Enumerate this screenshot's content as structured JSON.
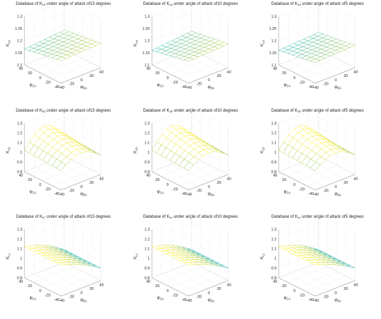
{
  "chart_data": [
    {
      "type": "surface",
      "title_prefix": "Database of K",
      "title_sub": "La",
      "title_suffix": " under angle of attack of15 degrees",
      "zlabel": "K",
      "zlabel_sub": "La",
      "xlabel": "φ",
      "xlabel_sub": "BA",
      "ylabel": "φ",
      "ylabel_sub": "CA",
      "zlim": [
        1.1,
        1.3
      ],
      "zticks": [
        "1.1",
        "1.15",
        "1.2",
        "1.25",
        "1.3"
      ],
      "xticks": [
        "-40",
        "-20",
        "0",
        "20",
        "40"
      ],
      "yticks": [
        "-40",
        "-20",
        "0",
        "20",
        "40"
      ],
      "surface": {
        "corner_values": [
          1.193,
          1.2,
          1.165,
          1.18
        ],
        "ridge": 0
      }
    },
    {
      "type": "surface",
      "title_prefix": "Database of K",
      "title_sub": "La",
      "title_suffix": " under angle of attack of10 degrees",
      "zlabel": "K",
      "zlabel_sub": "La",
      "xlabel": "φ",
      "xlabel_sub": "BA",
      "ylabel": "φ",
      "ylabel_sub": "CA",
      "zlim": [
        1.1,
        1.3
      ],
      "zticks": [
        "1.1",
        "1.15",
        "1.2",
        "1.25",
        "1.3"
      ],
      "xticks": [
        "-40",
        "-20",
        "0",
        "20",
        "40"
      ],
      "yticks": [
        "-40",
        "-20",
        "0",
        "20",
        "40"
      ],
      "surface": {
        "corner_values": [
          1.19,
          1.198,
          1.16,
          1.175
        ],
        "ridge": 0
      }
    },
    {
      "type": "surface",
      "title_prefix": "Database of K",
      "title_sub": "La",
      "title_suffix": " under angle of attack of5 degrees",
      "zlabel": "K",
      "zlabel_sub": "La",
      "xlabel": "φ",
      "xlabel_sub": "BA",
      "ylabel": "φ",
      "ylabel_sub": "CA",
      "zlim": [
        1.1,
        1.3
      ],
      "zticks": [
        "1.1",
        "1.15",
        "1.2",
        "1.25",
        "1.3"
      ],
      "xticks": [
        "-40",
        "-20",
        "0",
        "20",
        "40"
      ],
      "yticks": [
        "-40",
        "-20",
        "0",
        "20",
        "40"
      ],
      "surface": {
        "corner_values": [
          1.185,
          1.192,
          1.16,
          1.17
        ],
        "ridge": 0
      }
    },
    {
      "type": "surface",
      "title_prefix": "Database of K",
      "title_sub": "Lb",
      "title_suffix": " under angle of attack of15 degrees",
      "zlabel": "K",
      "zlabel_sub": "Lb",
      "xlabel": "φ",
      "xlabel_sub": "BA",
      "ylabel": "φ",
      "ylabel_sub": "CA",
      "zlim": [
        0.8,
        1.3
      ],
      "zticks": [
        "0.8",
        "0.9",
        "1",
        "1.1",
        "1.2",
        "1.3"
      ],
      "xticks": [
        "-40",
        "-20",
        "0",
        "20",
        "40"
      ],
      "yticks": [
        "-40",
        "-20",
        "0",
        "20",
        "40"
      ],
      "surface": {
        "corner_values": [
          1.0,
          1.0,
          1.02,
          1.02
        ],
        "ridge": 0.17
      }
    },
    {
      "type": "surface",
      "title_prefix": "Database of K",
      "title_sub": "Lb",
      "title_suffix": " under angle of attack of10 degrees",
      "zlabel": "K",
      "zlabel_sub": "Lb",
      "xlabel": "φ",
      "xlabel_sub": "BA",
      "ylabel": "φ",
      "ylabel_sub": "CA",
      "zlim": [
        0.8,
        1.3
      ],
      "zticks": [
        "0.8",
        "0.9",
        "1",
        "1.1",
        "1.2",
        "1.3"
      ],
      "xticks": [
        "-40",
        "-20",
        "0",
        "20",
        "40"
      ],
      "yticks": [
        "-40",
        "-20",
        "0",
        "20",
        "40"
      ],
      "surface": {
        "corner_values": [
          1.0,
          1.0,
          1.02,
          1.02
        ],
        "ridge": 0.17
      }
    },
    {
      "type": "surface",
      "title_prefix": "Database of K",
      "title_sub": "Lb",
      "title_suffix": " under angle of attack of5 degrees",
      "zlabel": "K",
      "zlabel_sub": "Lb",
      "xlabel": "φ",
      "xlabel_sub": "BA",
      "ylabel": "φ",
      "ylabel_sub": "CA",
      "zlim": [
        0.8,
        1.3
      ],
      "zticks": [
        "0.8",
        "0.9",
        "1",
        "1.1",
        "1.2",
        "1.3"
      ],
      "xticks": [
        "-40",
        "-20",
        "0",
        "20",
        "40"
      ],
      "yticks": [
        "-40",
        "-20",
        "0",
        "20",
        "40"
      ],
      "surface": {
        "corner_values": [
          1.0,
          1.0,
          1.02,
          1.02
        ],
        "ridge": 0.17
      }
    },
    {
      "type": "surface",
      "title_prefix": "Database of K",
      "title_sub": "Lc",
      "title_suffix": " under angle of attack of15 degrees",
      "zlabel": "K",
      "zlabel_sub": "Lc",
      "xlabel": "φ",
      "xlabel_sub": "BA",
      "ylabel": "φ",
      "ylabel_sub": "CA",
      "zlim": [
        0.8,
        1.3
      ],
      "zticks": [
        "0.8",
        "0.9",
        "1",
        "1.1",
        "1.2",
        "1.3"
      ],
      "xticks": [
        "-40",
        "-20",
        "0",
        "20",
        "40"
      ],
      "yticks": [
        "-40",
        "-20",
        "0",
        "20",
        "40"
      ],
      "surface": {
        "corner_values": [
          1.12,
          0.93,
          1.12,
          0.93
        ],
        "ridge": 0.03
      }
    },
    {
      "type": "surface",
      "title_prefix": "Database of K",
      "title_sub": "Lc",
      "title_suffix": " under angle of attack of10 degrees",
      "zlabel": "K",
      "zlabel_sub": "Lc",
      "xlabel": "φ",
      "xlabel_sub": "BA",
      "ylabel": "φ",
      "ylabel_sub": "CA",
      "zlim": [
        0.8,
        1.3
      ],
      "zticks": [
        "0.8",
        "0.9",
        "1",
        "1.1",
        "1.2",
        "1.3"
      ],
      "xticks": [
        "-40",
        "-20",
        "0",
        "20",
        "40"
      ],
      "yticks": [
        "-40",
        "-20",
        "0",
        "20",
        "40"
      ],
      "surface": {
        "corner_values": [
          1.12,
          0.93,
          1.12,
          0.93
        ],
        "ridge": 0.03
      }
    },
    {
      "type": "surface",
      "title_prefix": "Database of K",
      "title_sub": "Lc",
      "title_suffix": " under angle of attack of5 degrees",
      "zlabel": "K",
      "zlabel_sub": "Lc",
      "xlabel": "φ",
      "xlabel_sub": "BA",
      "ylabel": "φ",
      "ylabel_sub": "CA",
      "zlim": [
        0.8,
        1.3
      ],
      "zticks": [
        "0.8",
        "0.9",
        "1",
        "1.1",
        "1.2",
        "1.3"
      ],
      "xticks": [
        "-40",
        "-20",
        "0",
        "20",
        "40"
      ],
      "yticks": [
        "-40",
        "-20",
        "0",
        "20",
        "40"
      ],
      "surface": {
        "corner_values": [
          1.12,
          0.93,
          1.12,
          0.93
        ],
        "ridge": 0.03
      }
    }
  ]
}
